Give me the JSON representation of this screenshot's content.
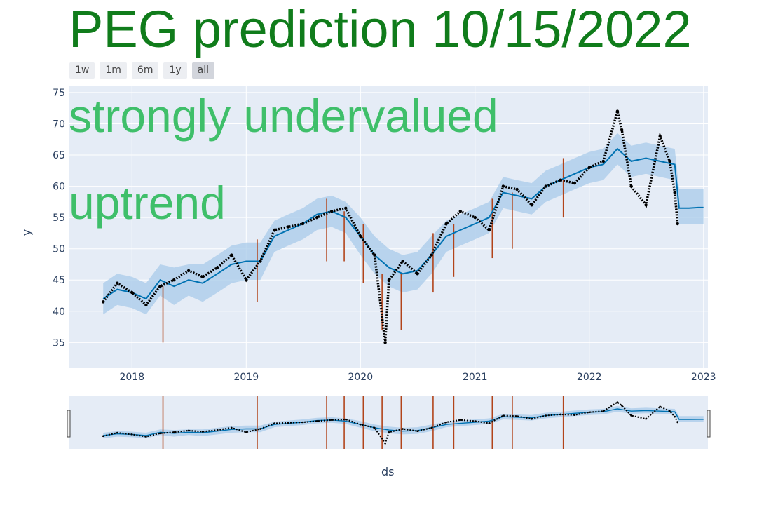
{
  "title": "PEG prediction 10/15/2022",
  "range_buttons": [
    "1w",
    "1m",
    "6m",
    "1y",
    "all"
  ],
  "active_range": "all",
  "annotations": [
    "strongly undervalued",
    "uptrend"
  ],
  "colors": {
    "plot_bg": "#e5ecf6",
    "actual": "#000000",
    "forecast": "#0072b2",
    "interval": "#a8cbea",
    "changepoint": "#b2441a",
    "title": "#107c1b",
    "annotation": "#3fbf6a"
  },
  "chart_data": {
    "type": "line",
    "xlabel": "ds",
    "ylabel": "y",
    "xlim": [
      "2017-06-15",
      "2023-01-15"
    ],
    "ylim": [
      31,
      76
    ],
    "x_ticks": [
      "2018",
      "2019",
      "2020",
      "2021",
      "2022",
      "2023"
    ],
    "y_ticks": [
      35,
      40,
      45,
      50,
      55,
      60,
      65,
      70,
      75
    ],
    "grid": true,
    "range_slider": true,
    "series": [
      {
        "kind": "forecast",
        "x": [
          "2017-10-01",
          "2017-11-15",
          "2018-01-01",
          "2018-02-15",
          "2018-04-01",
          "2018-05-15",
          "2018-07-01",
          "2018-08-15",
          "2018-10-01",
          "2018-11-15",
          "2019-01-01",
          "2019-02-15",
          "2019-04-01",
          "2019-05-15",
          "2019-07-01",
          "2019-08-15",
          "2019-10-01",
          "2019-11-15",
          "2020-01-01",
          "2020-02-15",
          "2020-04-01",
          "2020-05-15",
          "2020-07-01",
          "2020-08-15",
          "2020-10-01",
          "2020-11-15",
          "2021-01-01",
          "2021-02-15",
          "2021-04-01",
          "2021-05-15",
          "2021-07-01",
          "2021-08-15",
          "2021-10-01",
          "2021-11-15",
          "2022-01-01",
          "2022-02-15",
          "2022-04-01",
          "2022-05-15",
          "2022-07-01",
          "2022-08-15",
          "2022-10-01",
          "2022-10-15",
          "2022-11-15",
          "2022-12-15",
          "2023-01-01"
        ],
        "y": [
          42,
          43.5,
          43,
          42,
          45,
          44,
          45,
          44.5,
          46,
          47.5,
          48,
          48,
          52,
          53,
          54,
          55.5,
          56,
          55,
          52,
          49,
          47,
          46,
          46.5,
          49,
          52,
          53,
          54,
          55,
          59,
          58.5,
          58,
          60,
          61,
          62,
          63,
          63.5,
          66,
          64,
          64.5,
          64,
          63.5,
          56.5,
          56.5,
          56.6,
          56.6
        ],
        "upper": [
          44.5,
          46,
          45.5,
          44.5,
          47.5,
          47,
          47.5,
          47.5,
          49,
          50.5,
          51,
          51,
          54.5,
          55.5,
          56.5,
          58,
          58.5,
          57.5,
          55,
          52,
          50,
          49,
          49.5,
          52,
          54.5,
          55.5,
          56.5,
          57.5,
          61.5,
          61,
          60.5,
          62.5,
          63.5,
          64.5,
          65.5,
          66,
          68.5,
          66.5,
          67,
          66.5,
          66,
          59.5,
          59.5,
          59.5,
          59.5
        ],
        "lower": [
          39.5,
          41,
          40.5,
          39.5,
          42.5,
          41,
          42.5,
          41.5,
          43,
          44.5,
          45,
          45,
          49.5,
          50.5,
          51.5,
          53,
          53.5,
          52.5,
          49,
          46,
          44,
          43,
          43.5,
          46,
          49.5,
          50.5,
          51.5,
          52.5,
          56.5,
          56,
          55.5,
          57.5,
          58.5,
          59.5,
          60.5,
          61,
          63.5,
          61.5,
          62,
          61.5,
          61,
          54,
          54,
          54,
          54
        ]
      },
      {
        "kind": "actual",
        "x": [
          "2017-10-01",
          "2017-11-15",
          "2018-01-01",
          "2018-02-15",
          "2018-04-01",
          "2018-05-15",
          "2018-07-01",
          "2018-08-15",
          "2018-10-01",
          "2018-11-15",
          "2019-01-01",
          "2019-02-15",
          "2019-04-01",
          "2019-05-15",
          "2019-07-01",
          "2019-08-15",
          "2019-10-01",
          "2019-11-15",
          "2020-01-01",
          "2020-02-15",
          "2020-03-20",
          "2020-04-01",
          "2020-05-15",
          "2020-07-01",
          "2020-08-15",
          "2020-10-01",
          "2020-11-15",
          "2021-01-01",
          "2021-02-15",
          "2021-04-01",
          "2021-05-15",
          "2021-07-01",
          "2021-08-15",
          "2021-10-01",
          "2021-11-15",
          "2022-01-01",
          "2022-02-15",
          "2022-04-01",
          "2022-04-15",
          "2022-05-15",
          "2022-07-01",
          "2022-08-15",
          "2022-09-15",
          "2022-10-01",
          "2022-10-10"
        ],
        "y": [
          41.5,
          44.5,
          43,
          41,
          44,
          45,
          46.5,
          45.5,
          47,
          49,
          45,
          48,
          53,
          53.5,
          54,
          55,
          56,
          56.5,
          52,
          49,
          35,
          45,
          48,
          46,
          49,
          54,
          56,
          55,
          53,
          60,
          59.5,
          57,
          60,
          61,
          60.5,
          63,
          64,
          72,
          69,
          60,
          57,
          68,
          64,
          59,
          54
        ]
      }
    ],
    "changepoints": [
      {
        "x": "2018-04-10",
        "low": 35,
        "high": 44
      },
      {
        "x": "2019-02-05",
        "low": 41.5,
        "high": 51.5
      },
      {
        "x": "2019-09-15",
        "low": 48,
        "high": 58
      },
      {
        "x": "2019-11-10",
        "low": 48,
        "high": 56
      },
      {
        "x": "2020-01-10",
        "low": 44.5,
        "high": 54
      },
      {
        "x": "2020-03-10",
        "low": 37,
        "high": 46
      },
      {
        "x": "2020-05-10",
        "low": 37,
        "high": 46
      },
      {
        "x": "2020-08-20",
        "low": 43,
        "high": 52.5
      },
      {
        "x": "2020-10-25",
        "low": 45.5,
        "high": 54
      },
      {
        "x": "2021-02-25",
        "low": 48.5,
        "high": 58
      },
      {
        "x": "2021-04-30",
        "low": 50,
        "high": 59
      },
      {
        "x": "2021-10-10",
        "low": 55,
        "high": 64.5
      }
    ]
  }
}
